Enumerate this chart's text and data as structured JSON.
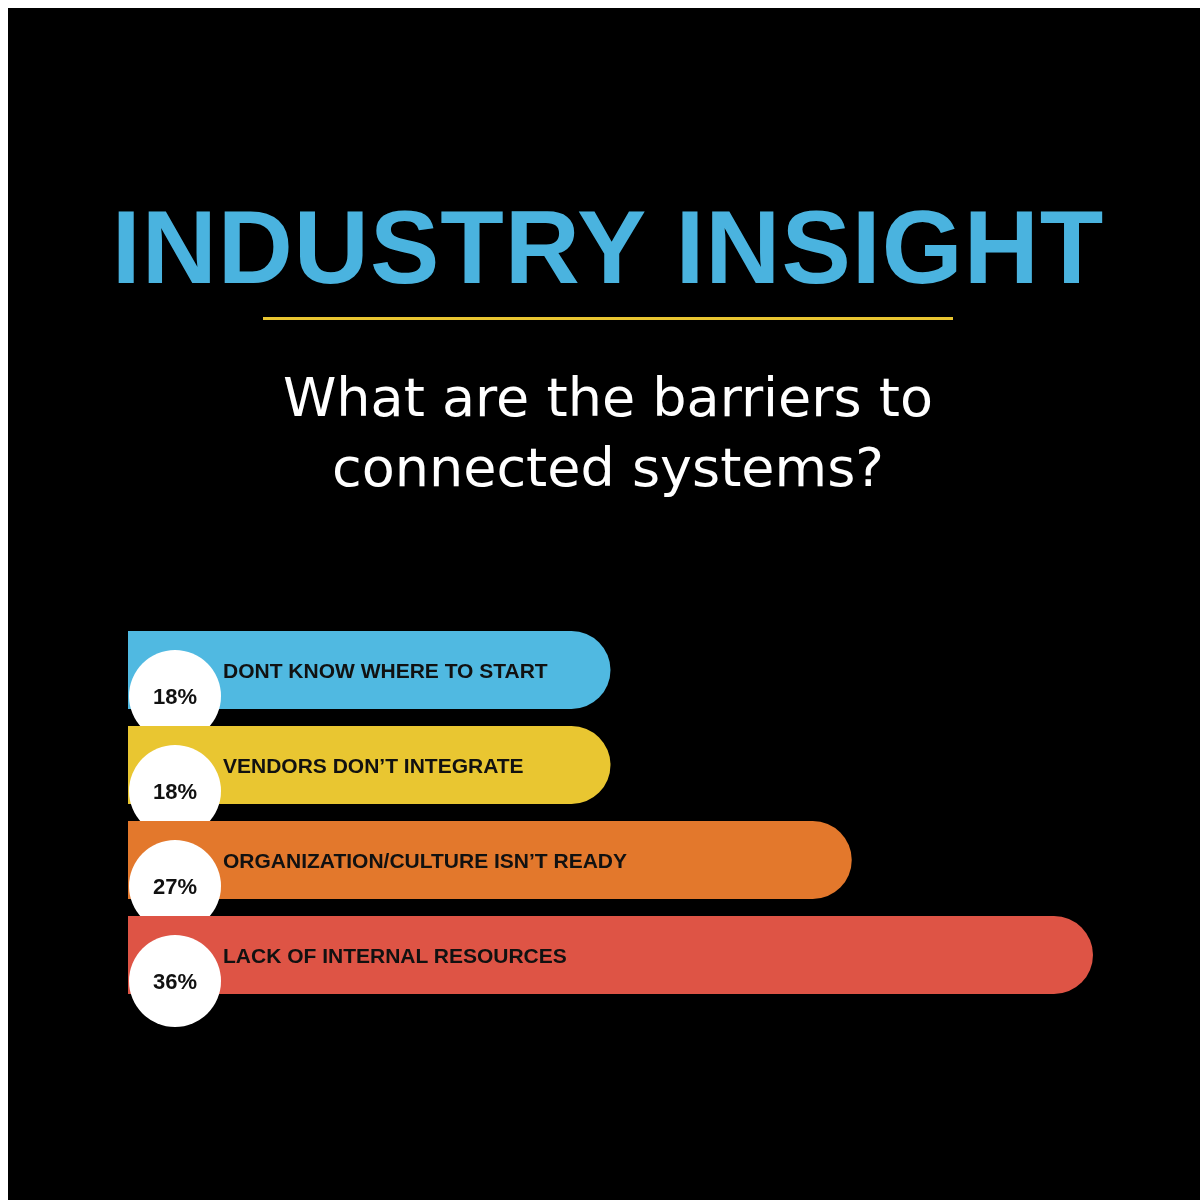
{
  "chart_data": {
    "type": "bar",
    "orientation": "horizontal",
    "title": "INDUSTRY INSIGHT",
    "subtitle": "What are the barriers to connected systems?",
    "categories": [
      "DONT KNOW WHERE TO START",
      "VENDORS DON’T INTEGRATE",
      "ORGANIZATION/CULTURE ISN’T READY",
      "LACK OF INTERNAL RESOURCES"
    ],
    "values": [
      18,
      18,
      27,
      36
    ],
    "colors": [
      "#50b9e1",
      "#e9c631",
      "#e3782c",
      "#de5445"
    ],
    "value_labels": [
      "18%",
      "18%",
      "27%",
      "36%"
    ]
  }
}
